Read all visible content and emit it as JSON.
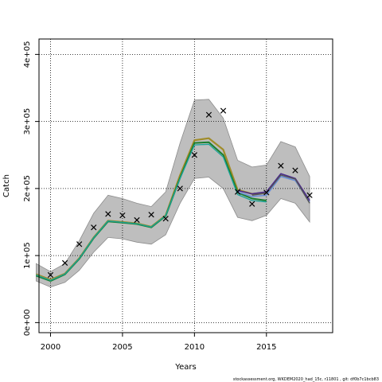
{
  "chart_data": {
    "type": "line",
    "title": "",
    "xlabel": "Years",
    "ylabel": "Catch",
    "xlim": [
      1999.2,
      2019.6
    ],
    "ylim": [
      -15000,
      423000
    ],
    "x_ticks": [
      2000,
      2005,
      2010,
      2015
    ],
    "x_tick_labels": [
      "2000",
      "2005",
      "2010",
      "2015"
    ],
    "y_ticks": [
      0,
      100000,
      200000,
      300000,
      400000
    ],
    "y_tick_labels": [
      "0e+00",
      "1e+05",
      "2e+05",
      "3e+05",
      "4e+05"
    ],
    "grid": true,
    "footnote": "stockassessment.org, WKDEM2020_had_15c, r11801 , git: df0b7c1bcb83",
    "colors": {
      "band": "#bebebe",
      "band_edge": "#8c8c8c",
      "observed": "#000000",
      "series_green": "#1a7f2e",
      "series_olive": "#a08c2a",
      "series_teal": "#1aa39a",
      "series_blue": "#6a8fd8",
      "series_purple": "#4a2a8c",
      "series_gray": "#555555"
    },
    "band": {
      "x": [
        1999,
        2000,
        2001,
        2002,
        2003,
        2004,
        2005,
        2006,
        2007,
        2008,
        2009,
        2010,
        2011,
        2012,
        2013,
        2014,
        2015,
        2016,
        2017,
        2018
      ],
      "upper": [
        88000,
        76000,
        88000,
        122000,
        163000,
        190000,
        185000,
        178000,
        173000,
        195000,
        268000,
        332000,
        333000,
        305000,
        242000,
        232000,
        235000,
        270000,
        262000,
        218000
      ],
      "lower": [
        62000,
        53000,
        60000,
        78000,
        105000,
        127000,
        125000,
        120000,
        117000,
        131000,
        178000,
        215000,
        217000,
        200000,
        157000,
        152000,
        160000,
        185000,
        178000,
        150000
      ]
    },
    "observed": {
      "x": [
        2000,
        2001,
        2002,
        2003,
        2004,
        2005,
        2006,
        2007,
        2008,
        2009,
        2010,
        2011,
        2012,
        2013,
        2014,
        2015,
        2016,
        2017,
        2018
      ],
      "y": [
        71000,
        89000,
        117000,
        142000,
        162000,
        160000,
        153000,
        161000,
        155000,
        200000,
        250000,
        310000,
        316000,
        195000,
        177000,
        194000,
        234000,
        227000,
        190000
      ]
    },
    "series": [
      {
        "x": [
          1999,
          2000,
          2001,
          2002,
          2003,
          2004,
          2005,
          2006,
          2007,
          2008,
          2009,
          2010,
          2011,
          2012,
          2013,
          2014,
          2015
        ],
        "values": [
          72000,
          64000,
          73000,
          96000,
          127000,
          152000,
          150000,
          148000,
          143000,
          160000,
          220000,
          272000,
          275000,
          258000,
          198000,
          192000,
          194000
        ]
      },
      {
        "x": [
          1999,
          2000,
          2001,
          2002,
          2003,
          2004,
          2005,
          2006,
          2007,
          2008,
          2009,
          2010,
          2011,
          2012,
          2013,
          2014,
          2015
        ],
        "values": [
          70000,
          62000,
          72000,
          95000,
          126000,
          151000,
          149000,
          147000,
          142000,
          159000,
          216000,
          268000,
          269000,
          250000,
          194000,
          185000,
          182000
        ]
      },
      {
        "x": [
          1999,
          2000,
          2001,
          2002,
          2003,
          2004,
          2005,
          2006,
          2007,
          2008,
          2009,
          2010,
          2011,
          2012,
          2013,
          2014,
          2015
        ],
        "values": [
          71000,
          63000,
          72500,
          95500,
          126500,
          151500,
          149500,
          147500,
          142500,
          159500,
          215000,
          265000,
          266000,
          247000,
          191000,
          182000,
          180000
        ]
      },
      {
        "x": [
          2013,
          2014,
          2015,
          2016,
          2017,
          2018
        ],
        "values": [
          195000,
          188000,
          190000,
          218000,
          212000,
          180000
        ]
      },
      {
        "x": [
          2013,
          2014,
          2015,
          2016,
          2017,
          2018
        ],
        "values": [
          197000,
          192000,
          195000,
          222000,
          215000,
          182000
        ]
      },
      {
        "x": [
          2014,
          2015,
          2016,
          2017,
          2018
        ],
        "values": [
          190000,
          193000,
          220000,
          214000,
          178000
        ]
      }
    ]
  }
}
